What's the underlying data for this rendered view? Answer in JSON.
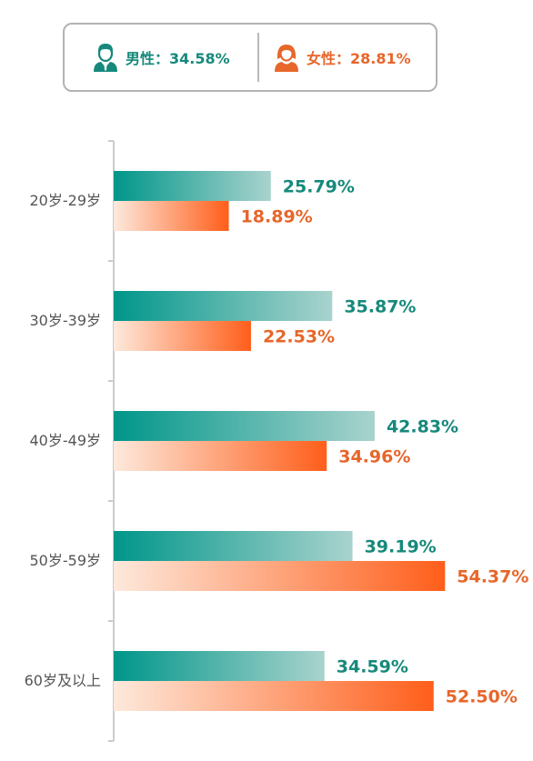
{
  "legend": {
    "male": {
      "label": "男性：34.58%",
      "icon": "male-user-icon",
      "color": "#16897b"
    },
    "female": {
      "label": "女性：28.81%",
      "icon": "female-user-icon",
      "color": "#e7662a"
    }
  },
  "chart_data": {
    "type": "bar",
    "orientation": "horizontal",
    "categories": [
      "20岁-29岁",
      "30岁-39岁",
      "40岁-49岁",
      "50岁-59岁",
      "60岁及以上"
    ],
    "series": [
      {
        "name": "男性",
        "values": [
          25.79,
          35.87,
          42.83,
          39.19,
          34.59
        ],
        "labels": [
          "25.79%",
          "35.87%",
          "42.83%",
          "39.19%",
          "34.59%"
        ],
        "color": "#00968a"
      },
      {
        "name": "女性",
        "values": [
          18.89,
          22.53,
          34.96,
          54.37,
          52.5
        ],
        "labels": [
          "18.89%",
          "22.53%",
          "34.96%",
          "54.37%",
          "52.50%"
        ],
        "color": "#ff5e1a"
      }
    ],
    "xlim": [
      0,
      60
    ],
    "grid": false,
    "legend_placement": "top"
  }
}
